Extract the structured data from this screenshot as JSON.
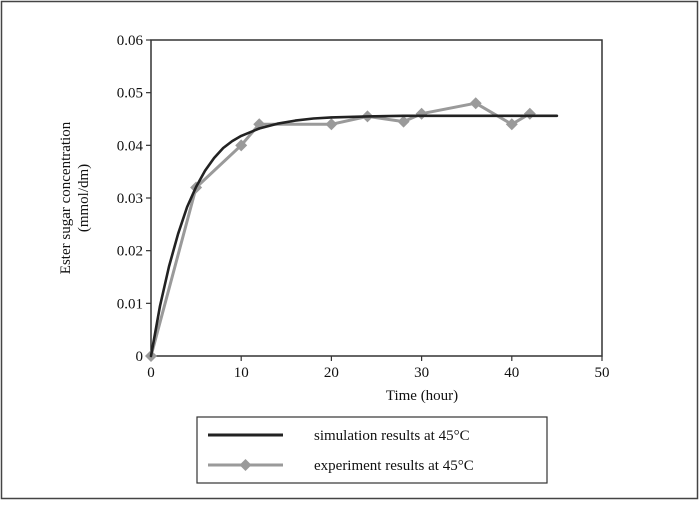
{
  "chart_data": {
    "type": "line",
    "title": "",
    "xlabel": "Time (hour)",
    "ylabel_lines": [
      "Ester sugar concentration",
      "(mmol/dm)"
    ],
    "xlim": [
      0,
      50
    ],
    "ylim": [
      0,
      0.06
    ],
    "x_ticks": [
      0,
      10,
      20,
      30,
      40,
      50
    ],
    "x_tick_labels": [
      "0",
      "10",
      "20",
      "30",
      "40",
      "50"
    ],
    "y_ticks": [
      0,
      0.01,
      0.02,
      0.03,
      0.04,
      0.05,
      0.06
    ],
    "y_tick_labels": [
      "0",
      "0.01",
      "0.02",
      "0.03",
      "0.04",
      "0.05",
      "0.06"
    ],
    "grid": false,
    "legend_position": "bottom-center, below plot",
    "series": [
      {
        "name": "simulation results at 45°C",
        "color": "#222222",
        "marker": "none",
        "x": [
          0,
          1,
          2,
          3,
          4,
          5,
          6,
          7,
          8,
          9,
          10,
          12,
          14,
          16,
          18,
          20,
          24,
          28,
          32,
          36,
          40,
          45
        ],
        "values": [
          0,
          0.0095,
          0.017,
          0.0232,
          0.0283,
          0.0321,
          0.0352,
          0.0376,
          0.0395,
          0.0408,
          0.0418,
          0.0432,
          0.0441,
          0.0447,
          0.0451,
          0.0453,
          0.0455,
          0.0456,
          0.0456,
          0.0456,
          0.0456,
          0.0456
        ]
      },
      {
        "name": "experiment results at 45°C",
        "color": "#9a9a9a",
        "marker": "diamond",
        "x": [
          0,
          5,
          10,
          12,
          20,
          24,
          28,
          30,
          36,
          40,
          42
        ],
        "values": [
          0,
          0.032,
          0.04,
          0.044,
          0.044,
          0.0455,
          0.0445,
          0.046,
          0.048,
          0.044,
          0.046
        ]
      }
    ]
  }
}
